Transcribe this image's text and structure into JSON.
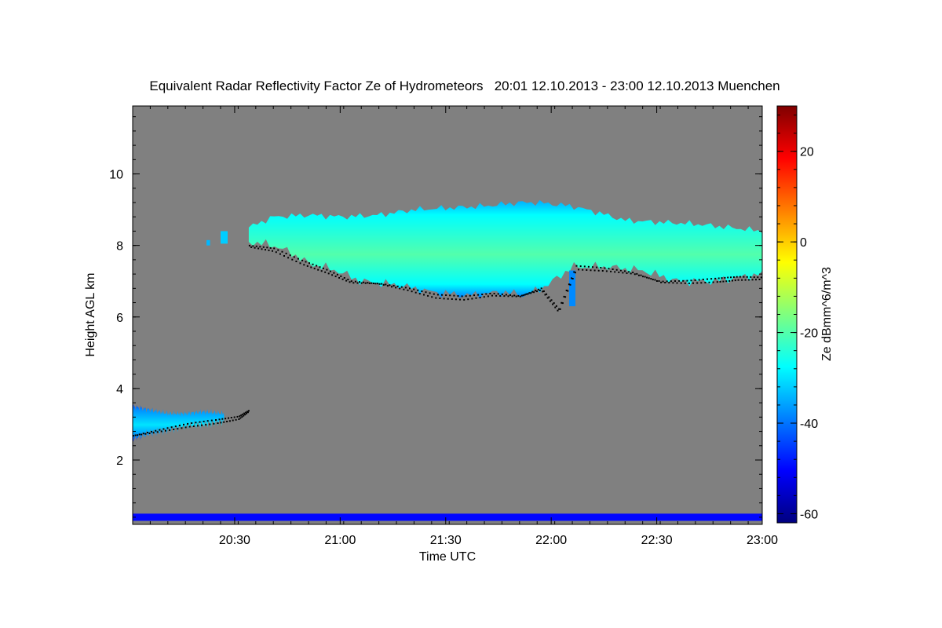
{
  "chart_data": {
    "type": "heatmap",
    "title": "Equivalent Radar Reflectivity Factor Ze of Hydrometeors   20:01 12.10.2013 - 23:00 12.10.2013 Muenchen",
    "xlabel": "Time UTC",
    "ylabel": "Height AGL km",
    "colorbar_label": "Ze dBmm^6/m^3",
    "x_range_minutes": [
      0,
      179
    ],
    "x_ticks": [
      {
        "minute": 29,
        "label": "20:30"
      },
      {
        "minute": 59,
        "label": "21:00"
      },
      {
        "minute": 89,
        "label": "21:30"
      },
      {
        "minute": 119,
        "label": "22:00"
      },
      {
        "minute": 149,
        "label": "22:30"
      },
      {
        "minute": 179,
        "label": "23:00"
      }
    ],
    "y_range_km": [
      0.2,
      11.9
    ],
    "y_ticks": [
      {
        "value": 2,
        "label": "2"
      },
      {
        "value": 4,
        "label": "4"
      },
      {
        "value": 6,
        "label": "6"
      },
      {
        "value": 8,
        "label": "8"
      },
      {
        "value": 10,
        "label": "10"
      }
    ],
    "colorbar_range": [
      -62,
      30
    ],
    "colorbar_ticks": [
      {
        "value": -60,
        "label": "-60"
      },
      {
        "value": -40,
        "label": "-40"
      },
      {
        "value": -20,
        "label": "-20"
      },
      {
        "value": 0,
        "label": "0"
      },
      {
        "value": 20,
        "label": "20"
      }
    ],
    "background_color": "#808080",
    "colormap": [
      "#00007f",
      "#0000ff",
      "#007fff",
      "#00ffff",
      "#7fff7f",
      "#ffff00",
      "#ff7f00",
      "#ff0000",
      "#7f0000"
    ],
    "upper_cloud": {
      "minute_start": 33,
      "minute_end": 179,
      "top_km": [
        [
          33,
          8.5
        ],
        [
          40,
          8.8
        ],
        [
          50,
          8.85
        ],
        [
          60,
          8.8
        ],
        [
          70,
          8.85
        ],
        [
          80,
          9.0
        ],
        [
          90,
          9.05
        ],
        [
          100,
          9.1
        ],
        [
          110,
          9.2
        ],
        [
          115,
          9.2
        ],
        [
          125,
          9.1
        ],
        [
          133,
          8.9
        ],
        [
          140,
          8.7
        ],
        [
          150,
          8.65
        ],
        [
          160,
          8.6
        ],
        [
          170,
          8.5
        ],
        [
          179,
          8.4
        ]
      ],
      "base_km": [
        [
          33,
          8.1
        ],
        [
          40,
          8.0
        ],
        [
          45,
          7.8
        ],
        [
          50,
          7.5
        ],
        [
          58,
          7.3
        ],
        [
          65,
          7.0
        ],
        [
          75,
          6.9
        ],
        [
          85,
          6.7
        ],
        [
          95,
          6.6
        ],
        [
          105,
          6.7
        ],
        [
          112,
          6.6
        ],
        [
          118,
          6.9
        ],
        [
          125,
          7.4
        ],
        [
          135,
          7.4
        ],
        [
          145,
          7.3
        ],
        [
          155,
          7.0
        ],
        [
          165,
          7.0
        ],
        [
          172,
          7.1
        ],
        [
          179,
          7.2
        ]
      ],
      "core_dbz": -20,
      "edge_dbz": -35
    },
    "fall_streak": {
      "minute": 125,
      "top_km": 7.3,
      "base_km": 6.3,
      "dbz": -38
    },
    "small_patches": [
      {
        "minute_start": 25,
        "minute_end": 27,
        "top_km": 8.4,
        "base_km": 8.05,
        "dbz": -32
      },
      {
        "minute_start": 21,
        "minute_end": 22,
        "top_km": 8.15,
        "base_km": 8.0,
        "dbz": -34
      }
    ],
    "lower_cloud": {
      "minute_start": 0,
      "minute_end": 26,
      "top_km": [
        [
          0,
          3.5
        ],
        [
          5,
          3.4
        ],
        [
          10,
          3.3
        ],
        [
          15,
          3.3
        ],
        [
          20,
          3.35
        ],
        [
          26,
          3.3
        ]
      ],
      "base_km": [
        [
          0,
          2.6
        ],
        [
          5,
          2.75
        ],
        [
          10,
          2.85
        ],
        [
          15,
          2.95
        ],
        [
          20,
          3.0
        ],
        [
          26,
          3.1
        ]
      ],
      "core_dbz": -30,
      "edge_dbz": -45
    },
    "cloud_base_points_km": [
      [
        0,
        2.7
      ],
      [
        8,
        2.85
      ],
      [
        16,
        3.0
      ],
      [
        24,
        3.1
      ],
      [
        30,
        3.2
      ],
      [
        33,
        3.4
      ],
      [
        33,
        8.0
      ],
      [
        40,
        7.9
      ],
      [
        48,
        7.55
      ],
      [
        55,
        7.3
      ],
      [
        62,
        7.0
      ],
      [
        70,
        6.95
      ],
      [
        78,
        6.8
      ],
      [
        86,
        6.6
      ],
      [
        94,
        6.55
      ],
      [
        102,
        6.65
      ],
      [
        110,
        6.6
      ],
      [
        116,
        6.8
      ],
      [
        121,
        6.2
      ],
      [
        126,
        7.4
      ],
      [
        134,
        7.35
      ],
      [
        142,
        7.25
      ],
      [
        150,
        7.0
      ],
      [
        158,
        7.0
      ],
      [
        166,
        7.05
      ],
      [
        172,
        7.1
      ],
      [
        179,
        7.1
      ]
    ],
    "ground_clutter": {
      "bottom_km": 0.3,
      "top_km": 0.5,
      "dbz": -50
    }
  }
}
